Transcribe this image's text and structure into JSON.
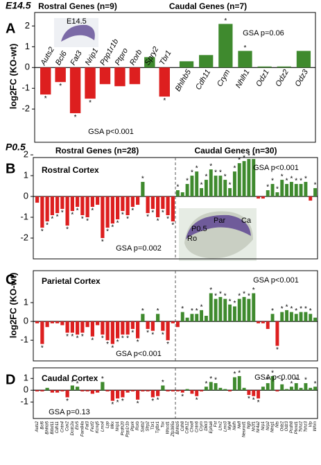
{
  "chart_data": [
    {
      "type": "bar",
      "panel_label": "A",
      "stage": "E14.5",
      "ylabel": "log2FC (KO-wt)",
      "image_labels": [
        "E14.5"
      ],
      "annotations": [
        "GSA p=0.06",
        "GSA p<0.001"
      ],
      "positive_color": "#3f8a2e",
      "negative_color": "#dd1f1f",
      "sig_marker": "*",
      "ylim": [
        -3.6,
        2.65
      ],
      "yticks": [
        -2,
        -1,
        0,
        1,
        2
      ],
      "series": [
        {
          "name": "Rostral Genes (n=9)",
          "categories": [
            "Auts2",
            "Bcl6",
            "Fat3",
            "Nrip1",
            "Ppp1r1b",
            "Ptpro",
            "Rorb",
            "Spry2",
            "Tbr1"
          ],
          "values": [
            -1.3,
            -0.7,
            -2.2,
            -1.5,
            -0.8,
            -0.9,
            -0.8,
            0.5,
            -1.4
          ],
          "significance": [
            "*",
            "*",
            "*",
            "*",
            null,
            null,
            null,
            null,
            "*"
          ]
        },
        {
          "name": "Caudal Genes (n=7)",
          "categories": [
            "Bhlhb5",
            "Cdh11",
            "Crym",
            "Nhlh1",
            "Odz1",
            "Odz2",
            "Odz3"
          ],
          "values": [
            0.3,
            0.6,
            2.1,
            0.8,
            0.05,
            0.05,
            0.8
          ],
          "significance": [
            null,
            null,
            "*",
            "*",
            null,
            null,
            null
          ]
        }
      ]
    },
    {
      "type": "bar",
      "panel_label": "B",
      "stage": "P0.5",
      "subtitle": "Rostral Cortex",
      "image_labels": [
        "P0.5",
        "Ro",
        "Par",
        "Ca"
      ],
      "annotations": [
        "GSA p<0.001",
        "GSA p=0.002"
      ],
      "positive_color": "#3f8a2e",
      "negative_color": "#dd1f1f",
      "sig_marker": "*",
      "ylim": [
        -3.0,
        1.87
      ],
      "yticks": [
        -2,
        -1,
        0,
        1,
        2
      ],
      "series": [
        {
          "name": "Rostral Genes (n=28)",
          "values": [
            -0.3,
            -1.5,
            -1.2,
            -0.9,
            -0.8,
            -0.6,
            -1.4,
            -0.7,
            -0.5,
            -0.9,
            -1.0,
            -0.5,
            -0.4,
            -2.0,
            -1.5,
            -1.3,
            -1.1,
            -0.7,
            -0.9,
            -0.5,
            -0.4,
            0.7,
            -0.8,
            -0.6,
            -1.0,
            -0.6,
            -0.9,
            -1.2
          ],
          "significance": [
            null,
            "*",
            "*",
            "*",
            "*",
            "*",
            "*",
            "*",
            "*",
            "*",
            "*",
            "*",
            null,
            "*",
            "*",
            "*",
            "*",
            "*",
            "*",
            "*",
            null,
            "*",
            "*",
            "*",
            "*",
            "*",
            "*",
            "*"
          ]
        },
        {
          "name": "Caudal Genes (n=30)",
          "values": [
            0.3,
            0.2,
            0.6,
            1.0,
            1.2,
            0.4,
            0.8,
            1.3,
            1.0,
            1.0,
            0.8,
            0.4,
            1.2,
            1.6,
            1.7,
            1.8,
            1.8,
            -0.1,
            -0.1,
            0.3,
            0.6,
            0.2,
            0.8,
            0.6,
            0.7,
            0.6,
            0.6,
            0.7,
            -0.2,
            0.4
          ],
          "significance": [
            "*",
            null,
            "*",
            "*",
            "*",
            "*",
            "*",
            "*",
            "*",
            "*",
            "*",
            "*",
            "*",
            "*",
            "*",
            "*",
            "*",
            null,
            null,
            "*",
            "*",
            "*",
            "*",
            "*",
            "*",
            "*",
            "*",
            "*",
            null,
            "*"
          ]
        }
      ]
    },
    {
      "type": "bar",
      "panel_label": "C",
      "subtitle": "Parietal Cortex",
      "ylabel": "log2FC (KO-wt)",
      "annotations": [
        "GSA p<0.001",
        "GSA p<0.001"
      ],
      "positive_color": "#3f8a2e",
      "negative_color": "#dd1f1f",
      "sig_marker": "*",
      "ylim": [
        -2.1,
        2.7
      ],
      "yticks": [
        -1,
        0,
        1
      ],
      "series": [
        {
          "values": [
            -0.1,
            -1.2,
            -0.3,
            -0.1,
            -0.1,
            -0.2,
            -0.6,
            -0.6,
            -0.7,
            -0.6,
            -0.3,
            -0.8,
            -0.2,
            -0.7,
            -1.0,
            -1.2,
            -0.9,
            -0.7,
            -0.7,
            -0.4,
            -0.9,
            0.4,
            -0.4,
            -0.5,
            0.4,
            -0.5,
            -1.0,
            -0.1
          ],
          "significance": [
            null,
            "*",
            null,
            null,
            null,
            null,
            "*",
            "*",
            "*",
            "*",
            null,
            "*",
            null,
            "*",
            "*",
            "*",
            "*",
            "*",
            "*",
            "*",
            "*",
            "*",
            "*",
            "*",
            "*",
            "*",
            "*",
            null
          ]
        },
        {
          "values": [
            -0.3,
            0.5,
            0.2,
            0.4,
            0.4,
            0.6,
            0.3,
            1.5,
            1.2,
            1.3,
            1.2,
            0.9,
            0.8,
            1.2,
            1.3,
            1.2,
            1.5,
            -0.1,
            -0.1,
            -0.4,
            0.4,
            -1.3,
            0.5,
            0.6,
            0.5,
            0.4,
            0.5,
            0.5,
            0.4,
            0.2
          ],
          "significance": [
            null,
            "*",
            null,
            "*",
            "*",
            "*",
            null,
            "*",
            "*",
            "*",
            "*",
            "*",
            "*",
            "*",
            "*",
            "*",
            "*",
            null,
            null,
            null,
            "*",
            "*",
            "*",
            "*",
            "*",
            "*",
            "*",
            "*",
            "*",
            null
          ]
        }
      ]
    },
    {
      "type": "bar",
      "panel_label": "D",
      "subtitle": "Caudal Cortex",
      "annotations": [
        "GSA p<0.001",
        "GSA p=0.13"
      ],
      "positive_color": "#3f8a2e",
      "negative_color": "#dd1f1f",
      "sig_marker": "*",
      "ylim": [
        -2.4,
        1.9
      ],
      "yticks": [
        -1,
        0,
        1
      ],
      "series": [
        {
          "categories": [
            "Auts2",
            "Bcl6",
            "Bhlhb5",
            "Btbd11",
            "Cdh11",
            "Cntn4",
            "Cux2",
            "Dcdc2a",
            "Etv5",
            "Fam84a",
            "Fat3",
            "Fezf2",
            "Kcnq5",
            "Lmo4",
            "Lpp",
            "Mkx",
            "Nrip1",
            "Pcdh20",
            "Ppp1r1b",
            "Ptprk",
            "Rorb",
            "Satb2",
            "Sfrp2",
            "Tbr1",
            "Tgfbr1",
            "Tox",
            "Wscd1",
            "Zfp365a"
          ],
          "values": [
            -0.1,
            -0.1,
            0.2,
            -0.2,
            -0.2,
            -0.1,
            -0.6,
            0.4,
            0.3,
            -0.1,
            -0.1,
            -0.3,
            -0.2,
            0.7,
            -0.1,
            -0.9,
            -0.7,
            -0.6,
            -0.2,
            -0.1,
            -0.8,
            -0.1,
            -0.1,
            -0.6,
            -0.5,
            0.4,
            -0.1,
            -0.1
          ],
          "significance": [
            null,
            null,
            null,
            null,
            null,
            null,
            "*",
            "*",
            "*",
            null,
            null,
            null,
            null,
            "*",
            null,
            "*",
            "*",
            "*",
            null,
            null,
            "*",
            null,
            null,
            "*",
            "*",
            "*",
            null,
            null
          ]
        },
        {
          "categories": [
            "Bhlhb5",
            "Cdh8",
            "Cdh12",
            "Chodl",
            "Cntn6",
            "Crym",
            "Dkk3",
            "Epha6",
            "Fst",
            "Lhx2",
            "Lmo3",
            "Myl4",
            "Nefh",
            "Nefl",
            "Neurod1",
            "Ngb",
            "Nr2f1",
            "Nr4a2",
            "Nrp1",
            "Nrp2",
            "Ntng1",
            "Nts",
            "Odz2",
            "Odz3",
            "Pcdh8",
            "Plxnd1",
            "Tshz2",
            "Tshz3",
            "Vip",
            "Whrn"
          ],
          "values": [
            -0.1,
            -0.2,
            0.1,
            -0.3,
            -0.5,
            -0.1,
            0.3,
            0.7,
            0.6,
            0.2,
            0.1,
            -0.1,
            1.1,
            1.2,
            0.2,
            -0.4,
            -0.5,
            -0.7,
            0.3,
            0.6,
            1.2,
            -0.1,
            0.5,
            0.1,
            0.3,
            0.6,
            0.2,
            0.6,
            0.2,
            0.3
          ],
          "significance": [
            null,
            "*",
            null,
            null,
            "*",
            null,
            "*",
            "*",
            "*",
            null,
            null,
            null,
            "*",
            "*",
            null,
            "*",
            "*",
            "*",
            null,
            "*",
            "*",
            null,
            "*",
            null,
            "*",
            "*",
            null,
            "*",
            null,
            "*"
          ]
        }
      ]
    }
  ]
}
